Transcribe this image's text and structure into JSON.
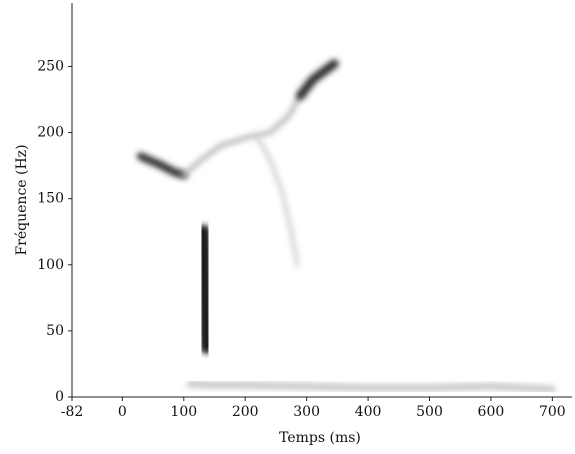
{
  "chart_data": {
    "type": "spectrogram",
    "xlabel": "Temps (ms)",
    "ylabel": "Fréquence (Hz)",
    "xlim": [
      -82,
      732
    ],
    "ylim": [
      0,
      298
    ],
    "xticks": [
      -82,
      0,
      100,
      200,
      300,
      400,
      500,
      600,
      700
    ],
    "yticks": [
      0,
      50,
      100,
      150,
      200,
      250
    ],
    "series": [
      {
        "color": "#1a1a1a",
        "x": [
          132,
          133,
          134,
          135,
          136,
          137
        ],
        "values": [
          125,
          110,
          90,
          70,
          50,
          38
        ]
      },
      {
        "color": "#333333",
        "x": [
          30,
          60,
          85,
          100
        ],
        "values": [
          182,
          176,
          170,
          168
        ]
      },
      {
        "color": "#bbbbbb",
        "x": [
          100,
          130,
          160,
          200,
          240,
          270,
          290
        ],
        "values": [
          168,
          180,
          190,
          196,
          200,
          212,
          228
        ]
      },
      {
        "color": "#333333",
        "x": [
          290,
          310,
          330,
          345
        ],
        "values": [
          228,
          240,
          247,
          252
        ]
      },
      {
        "color": "#cfcfcf",
        "x": [
          220,
          240,
          260,
          275,
          285
        ],
        "values": [
          196,
          180,
          155,
          125,
          100
        ]
      },
      {
        "color": "#c8c8c8",
        "x": [
          110,
          150,
          200,
          300,
          400,
          500,
          600,
          700
        ],
        "values": [
          10,
          9,
          9,
          8,
          7,
          7,
          8,
          6
        ]
      }
    ]
  }
}
